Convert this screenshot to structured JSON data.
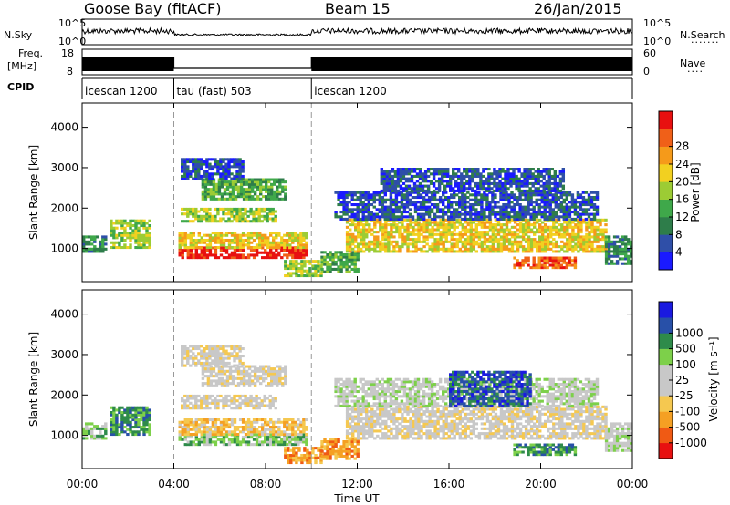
{
  "header": {
    "station": "Goose Bay (fitACF)",
    "beam": "Beam 15",
    "date": "26/Jan/2015"
  },
  "top_panels": {
    "nsky_label": "N.Sky",
    "nsky_ticks": [
      "10^5",
      "10^0"
    ],
    "nsearch_label": "N.Search",
    "nsearch_ticks": [
      "10^5",
      "10^0"
    ],
    "freq_label_1": "Freq.",
    "freq_label_2": "[MHz]",
    "freq_ticks": [
      "18",
      "8"
    ],
    "nave_label": "Nave",
    "nave_ticks": [
      "60",
      "0"
    ],
    "cpid_label": "CPID",
    "modes": [
      {
        "label": "icescan 1200",
        "start_hour": 0,
        "end_hour": 4
      },
      {
        "label": "tau (fast) 503",
        "start_hour": 4,
        "end_hour": 10
      },
      {
        "label": "icescan 1200",
        "start_hour": 10,
        "end_hour": 24
      }
    ]
  },
  "colors": {
    "power_scale": [
      "#1a1aff",
      "#2f4fa8",
      "#2e7d4a",
      "#3fa84a",
      "#9ccc34",
      "#f2d020",
      "#f59a1a",
      "#f06018",
      "#e81010"
    ],
    "velocity_scale": [
      "#e81010",
      "#f05a14",
      "#f5a023",
      "#f5c850",
      "#c8c8c8",
      "#c8c8c8",
      "#7dd04a",
      "#2e8b4a",
      "#2850a8",
      "#1a1ae0"
    ]
  },
  "chart_data": [
    {
      "type": "heatmap",
      "ylabel": "Slant Range [km]",
      "xlim": [
        0,
        24
      ],
      "ylim": [
        180,
        4600
      ],
      "x_ticks": [
        "00:00",
        "04:00",
        "08:00",
        "12:00",
        "16:00",
        "20:00",
        "00:00"
      ],
      "y_ticks": [
        1000,
        2000,
        3000,
        4000
      ],
      "colorbar_label": "Power [dB]",
      "colorbar_ticks": [
        4,
        8,
        12,
        16,
        20,
        24,
        28
      ],
      "echo_regions": [
        {
          "t0": 0.0,
          "t1": 1.0,
          "r0": 900,
          "r1": 1300,
          "level": 2
        },
        {
          "t0": 1.2,
          "t1": 3.0,
          "r0": 1000,
          "r1": 1700,
          "level": 4
        },
        {
          "t0": 4.2,
          "t1": 9.8,
          "r0": 750,
          "r1": 1000,
          "level": 8
        },
        {
          "t0": 4.2,
          "t1": 9.8,
          "r0": 1000,
          "r1": 1400,
          "level": 5
        },
        {
          "t0": 4.3,
          "t1": 8.5,
          "r0": 1650,
          "r1": 2000,
          "level": 4
        },
        {
          "t0": 5.2,
          "t1": 8.8,
          "r0": 2200,
          "r1": 2700,
          "level": 3
        },
        {
          "t0": 4.3,
          "t1": 7.0,
          "r0": 2700,
          "r1": 3200,
          "level": 1
        },
        {
          "t0": 8.8,
          "t1": 10.4,
          "r0": 300,
          "r1": 700,
          "level": 4
        },
        {
          "t0": 10.4,
          "t1": 12.0,
          "r0": 400,
          "r1": 900,
          "level": 3
        },
        {
          "t0": 11.5,
          "t1": 22.8,
          "r0": 900,
          "r1": 1700,
          "level": 5
        },
        {
          "t0": 11.0,
          "t1": 22.5,
          "r0": 1700,
          "r1": 2400,
          "level": 1
        },
        {
          "t0": 13.0,
          "t1": 21.0,
          "r0": 2400,
          "r1": 3000,
          "level": 1
        },
        {
          "t0": 18.8,
          "t1": 21.5,
          "r0": 500,
          "r1": 800,
          "level": 7
        },
        {
          "t0": 22.8,
          "t1": 24.0,
          "r0": 600,
          "r1": 1300,
          "level": 2
        }
      ]
    },
    {
      "type": "heatmap",
      "ylabel": "Slant Range [km]",
      "xlabel": "Time UT",
      "xlim": [
        0,
        24
      ],
      "ylim": [
        180,
        4600
      ],
      "x_ticks": [
        "00:00",
        "04:00",
        "08:00",
        "12:00",
        "16:00",
        "20:00",
        "00:00"
      ],
      "y_ticks": [
        1000,
        2000,
        3000,
        4000
      ],
      "colorbar_label": "Velocity [m s⁻¹]",
      "colorbar_ticks": [
        "-1000",
        "-500",
        "-100",
        "-25",
        "25",
        "100",
        "500",
        "1000"
      ],
      "echo_regions": [
        {
          "t0": 0.0,
          "t1": 1.0,
          "r0": 900,
          "r1": 1300,
          "level": 6
        },
        {
          "t0": 1.2,
          "t1": 3.0,
          "r0": 1000,
          "r1": 1700,
          "level": 7
        },
        {
          "t0": 4.2,
          "t1": 9.8,
          "r0": 750,
          "r1": 1000,
          "level": 6
        },
        {
          "t0": 4.2,
          "t1": 9.8,
          "r0": 1000,
          "r1": 1400,
          "level": 3
        },
        {
          "t0": 4.3,
          "t1": 8.5,
          "r0": 1650,
          "r1": 2000,
          "level": 4
        },
        {
          "t0": 5.2,
          "t1": 8.8,
          "r0": 2200,
          "r1": 2700,
          "level": 4
        },
        {
          "t0": 4.3,
          "t1": 7.0,
          "r0": 2700,
          "r1": 3200,
          "level": 4
        },
        {
          "t0": 8.8,
          "t1": 10.4,
          "r0": 300,
          "r1": 700,
          "level": 2
        },
        {
          "t0": 10.4,
          "t1": 12.0,
          "r0": 400,
          "r1": 900,
          "level": 2
        },
        {
          "t0": 11.5,
          "t1": 22.8,
          "r0": 900,
          "r1": 1700,
          "level": 4
        },
        {
          "t0": 11.0,
          "t1": 22.5,
          "r0": 1700,
          "r1": 2400,
          "level": 5
        },
        {
          "t0": 16.0,
          "t1": 19.5,
          "r0": 1700,
          "r1": 2600,
          "level": 8
        },
        {
          "t0": 18.8,
          "t1": 21.5,
          "r0": 500,
          "r1": 800,
          "level": 7
        },
        {
          "t0": 22.8,
          "t1": 24.0,
          "r0": 600,
          "r1": 1300,
          "level": 5
        }
      ]
    }
  ]
}
